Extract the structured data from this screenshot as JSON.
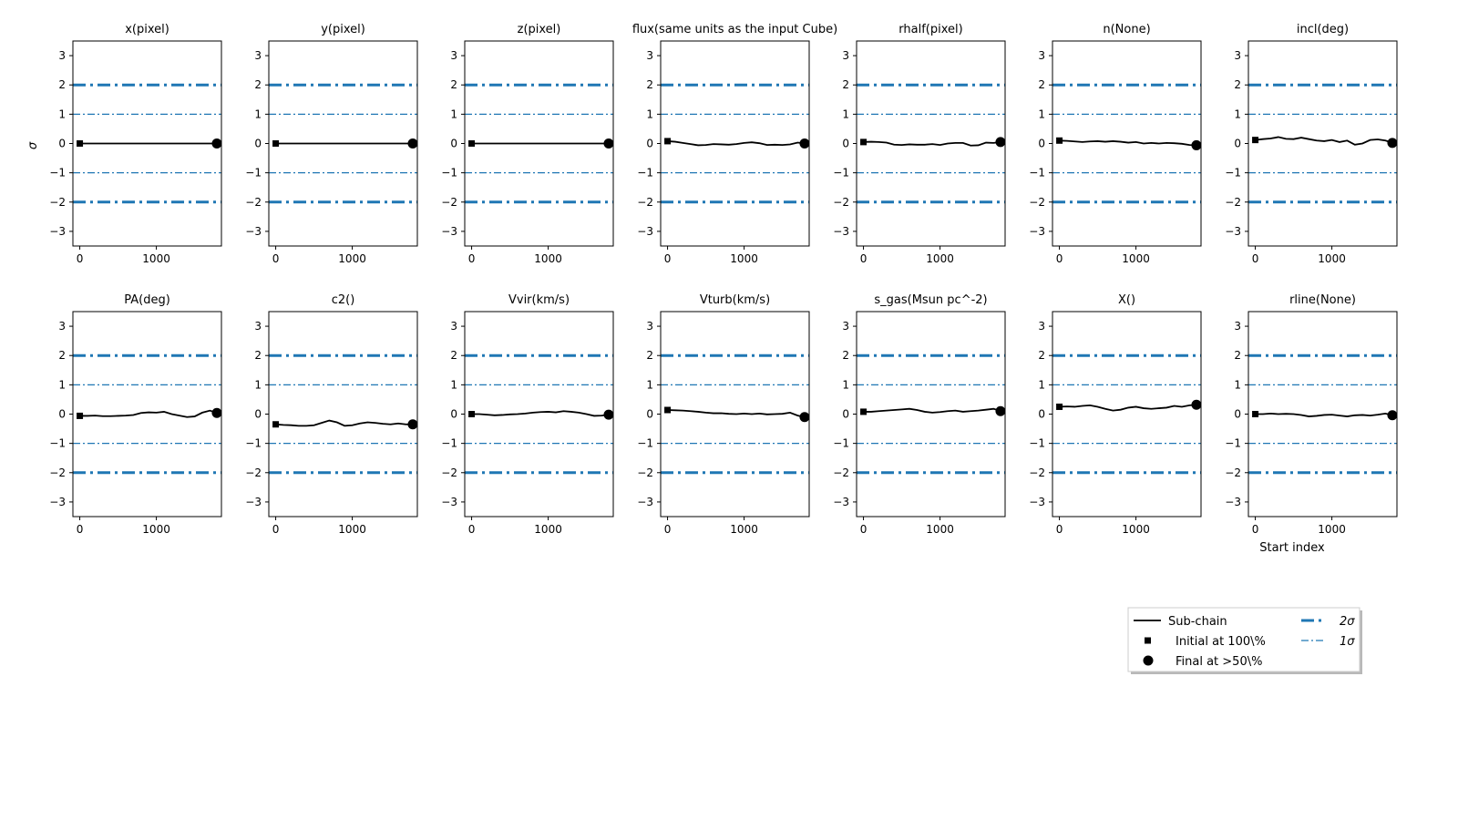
{
  "chart_data": {
    "type": "line",
    "ylabel": "σ",
    "xlabel": "Start index",
    "ylim": [
      -3.5,
      3.5
    ],
    "yticks": [
      -3,
      -2,
      -1,
      0,
      1,
      2,
      3
    ],
    "xlim": [
      -90,
      1850
    ],
    "xticks": [
      0,
      1000
    ],
    "reference_lines": [
      {
        "name": "2σ",
        "values": [
          2,
          -2
        ],
        "style": "thick dash-dot",
        "color": "#1f77b4"
      },
      {
        "name": "1σ",
        "values": [
          1,
          -1
        ],
        "style": "thin dash-dot",
        "color": "#1f77b4"
      }
    ],
    "legend": {
      "placement": "lower-right",
      "entries": [
        {
          "label": "Sub-chain",
          "marker": "line"
        },
        {
          "label": "Initial at 100\\%",
          "marker": "square"
        },
        {
          "label": "Final at $>50$\\%",
          "display": "Final at  >50\\%",
          "marker": "circle"
        },
        {
          "label": "2σ",
          "marker": "thick-dashdot"
        },
        {
          "label": "1σ",
          "marker": "thin-dashdot"
        }
      ]
    },
    "colors": {
      "subchain": "#000000",
      "sigma": "#1f77b4"
    },
    "x": [
      0,
      100,
      200,
      300,
      400,
      500,
      600,
      700,
      800,
      900,
      1000,
      1100,
      1200,
      1300,
      1400,
      1500,
      1600,
      1700,
      1790
    ],
    "panels": [
      {
        "title": "x(pixel)",
        "values": [
          0,
          0,
          0,
          0,
          0,
          0,
          0,
          0,
          0,
          0,
          0,
          0,
          0,
          0,
          0,
          0,
          0,
          0,
          0
        ]
      },
      {
        "title": "y(pixel)",
        "values": [
          0,
          0,
          0,
          0,
          0,
          0,
          0,
          0,
          0,
          0,
          0,
          0,
          0,
          0,
          0,
          0,
          0,
          0,
          0
        ]
      },
      {
        "title": "z(pixel)",
        "values": [
          0,
          0,
          0,
          0,
          0,
          0,
          0,
          0,
          0,
          0,
          0,
          0,
          0,
          0,
          0,
          0,
          0,
          0,
          0
        ]
      },
      {
        "title": "flux(same units as the input Cube)",
        "values": [
          0.08,
          0.06,
          0.02,
          -0.02,
          -0.06,
          -0.05,
          -0.02,
          -0.03,
          -0.04,
          -0.02,
          0.02,
          0.04,
          0.01,
          -0.05,
          -0.04,
          -0.05,
          -0.03,
          0.03,
          0.0
        ]
      },
      {
        "title": "rhalf(pixel)",
        "values": [
          0.05,
          0.06,
          0.05,
          0.03,
          -0.04,
          -0.05,
          -0.03,
          -0.04,
          -0.04,
          -0.02,
          -0.05,
          0.0,
          0.02,
          0.02,
          -0.07,
          -0.06,
          0.03,
          0.02,
          0.05
        ]
      },
      {
        "title": "n(None)",
        "values": [
          0.1,
          0.09,
          0.07,
          0.05,
          0.07,
          0.08,
          0.06,
          0.08,
          0.06,
          0.03,
          0.05,
          0.0,
          0.02,
          0.0,
          0.02,
          0.01,
          -0.01,
          -0.05,
          -0.06
        ]
      },
      {
        "title": "incl(deg)",
        "values": [
          0.12,
          0.15,
          0.17,
          0.22,
          0.16,
          0.15,
          0.2,
          0.15,
          0.1,
          0.08,
          0.12,
          0.05,
          0.1,
          -0.04,
          0.0,
          0.12,
          0.14,
          0.1,
          0.02
        ]
      },
      {
        "title": "PA(deg)",
        "values": [
          -0.06,
          -0.06,
          -0.05,
          -0.07,
          -0.07,
          -0.06,
          -0.05,
          -0.03,
          0.04,
          0.06,
          0.05,
          0.08,
          0.0,
          -0.05,
          -0.1,
          -0.08,
          0.05,
          0.12,
          0.04
        ]
      },
      {
        "title": "c2()",
        "values": [
          -0.35,
          -0.37,
          -0.38,
          -0.4,
          -0.4,
          -0.38,
          -0.3,
          -0.22,
          -0.28,
          -0.4,
          -0.38,
          -0.32,
          -0.28,
          -0.3,
          -0.33,
          -0.35,
          -0.32,
          -0.35,
          -0.35
        ]
      },
      {
        "title": "Vvir(km/s)",
        "values": [
          0.0,
          0.0,
          -0.02,
          -0.04,
          -0.03,
          -0.01,
          0.0,
          0.02,
          0.05,
          0.07,
          0.08,
          0.06,
          0.1,
          0.08,
          0.05,
          0.0,
          -0.06,
          -0.05,
          -0.02
        ]
      },
      {
        "title": "Vturb(km/s)",
        "values": [
          0.14,
          0.13,
          0.12,
          0.1,
          0.08,
          0.05,
          0.03,
          0.03,
          0.01,
          0.0,
          0.02,
          0.0,
          0.02,
          -0.01,
          0.0,
          0.01,
          0.05,
          -0.05,
          -0.1
        ]
      },
      {
        "title": "s_gas(Msun pc^-2)",
        "values": [
          0.08,
          0.08,
          0.1,
          0.12,
          0.14,
          0.16,
          0.18,
          0.14,
          0.08,
          0.05,
          0.07,
          0.1,
          0.12,
          0.08,
          0.1,
          0.12,
          0.15,
          0.18,
          0.1
        ]
      },
      {
        "title": "X()",
        "values": [
          0.25,
          0.26,
          0.25,
          0.28,
          0.3,
          0.25,
          0.18,
          0.12,
          0.15,
          0.22,
          0.25,
          0.2,
          0.18,
          0.2,
          0.22,
          0.28,
          0.25,
          0.3,
          0.32
        ]
      },
      {
        "title": "rline(None)",
        "values": [
          0.0,
          0.0,
          0.02,
          0.0,
          0.01,
          0.0,
          -0.03,
          -0.08,
          -0.06,
          -0.03,
          -0.02,
          -0.05,
          -0.08,
          -0.04,
          -0.03,
          -0.05,
          -0.02,
          0.02,
          -0.04
        ]
      }
    ]
  }
}
